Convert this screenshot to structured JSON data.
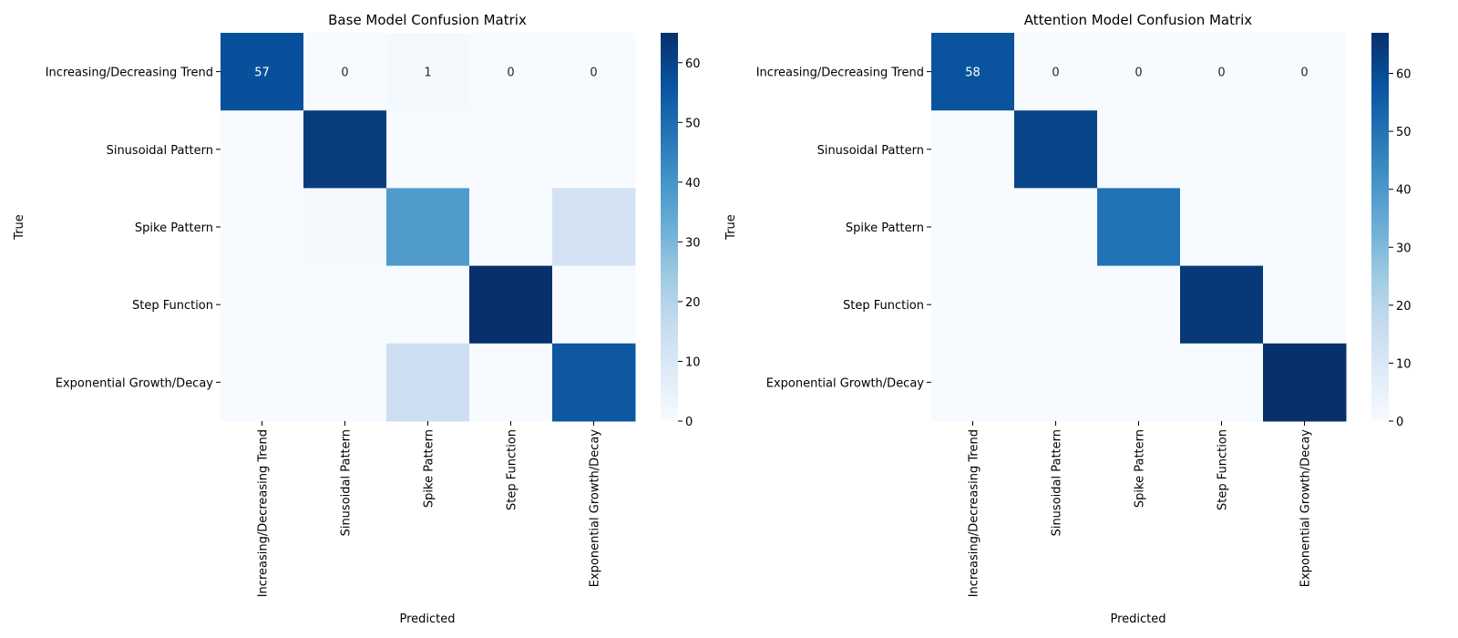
{
  "chart_data": [
    {
      "type": "heatmap",
      "title": "Base Model Confusion Matrix",
      "xlabel": "Predicted",
      "ylabel": "True",
      "categories": [
        "Increasing/Decreasing Trend",
        "Sinusoidal Pattern",
        "Spike Pattern",
        "Step Function",
        "Exponential Growth/Decay"
      ],
      "matrix": [
        [
          57,
          0,
          1,
          0,
          0
        ],
        [
          0,
          62,
          0,
          0,
          0
        ],
        [
          0,
          1,
          38,
          0,
          12
        ],
        [
          0,
          0,
          0,
          65,
          0
        ],
        [
          0,
          0,
          14,
          0,
          55
        ]
      ],
      "annotated_row": 0,
      "colorbar": {
        "min": 0,
        "max": 65,
        "ticks": [
          0,
          10,
          20,
          30,
          40,
          50,
          60
        ]
      },
      "colormap": [
        "#f7fbff",
        "#deebf7",
        "#c6dbef",
        "#9ecae1",
        "#6baed6",
        "#4292c6",
        "#2171b5",
        "#08519c",
        "#08306b"
      ]
    },
    {
      "type": "heatmap",
      "title": "Attention Model Confusion Matrix",
      "xlabel": "Predicted",
      "ylabel": "True",
      "categories": [
        "Increasing/Decreasing Trend",
        "Sinusoidal Pattern",
        "Spike Pattern",
        "Step Function",
        "Exponential Growth/Decay"
      ],
      "matrix": [
        [
          58,
          0,
          0,
          0,
          0
        ],
        [
          0,
          62,
          0,
          0,
          0
        ],
        [
          0,
          0,
          50,
          0,
          0
        ],
        [
          0,
          0,
          0,
          65,
          0
        ],
        [
          0,
          0,
          0,
          0,
          67
        ]
      ],
      "annotated_row": 0,
      "colorbar": {
        "min": 0,
        "max": 67,
        "ticks": [
          0,
          10,
          20,
          30,
          40,
          50,
          60
        ]
      },
      "colormap": [
        "#f7fbff",
        "#deebf7",
        "#c6dbef",
        "#9ecae1",
        "#6baed6",
        "#4292c6",
        "#2171b5",
        "#08519c",
        "#08306b"
      ]
    }
  ]
}
